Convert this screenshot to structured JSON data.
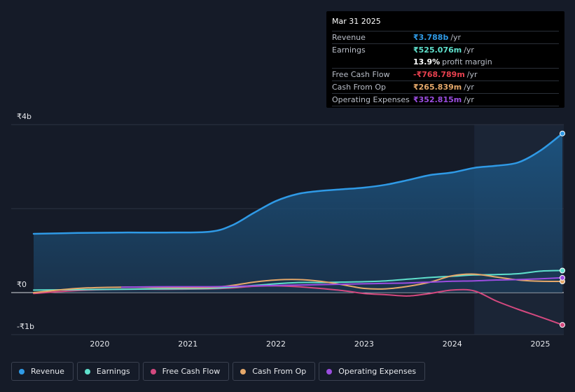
{
  "chart_data": {
    "type": "area",
    "x_unit": "year",
    "y_unit": "₹b",
    "ylim": [
      -1,
      4
    ],
    "xlim": [
      2019.25,
      2025.25
    ],
    "y_tick_labels": [
      {
        "value": 4,
        "label": "₹4b"
      },
      {
        "value": 0,
        "label": "₹0"
      },
      {
        "value": -1,
        "label": "-₹1b"
      }
    ],
    "x_tick_labels": [
      "2020",
      "2021",
      "2022",
      "2023",
      "2024",
      "2025"
    ],
    "x_tick_values": [
      2020,
      2021,
      2022,
      2023,
      2024,
      2025
    ],
    "grid": true,
    "highlight_start": 2024.25,
    "series": [
      {
        "name": "Revenue",
        "color": "#2f9ae6",
        "fill": true,
        "x": [
          2019.25,
          2019.75,
          2020.25,
          2020.75,
          2021.25,
          2021.5,
          2021.75,
          2022.0,
          2022.25,
          2022.5,
          2022.75,
          2023.0,
          2023.25,
          2023.5,
          2023.75,
          2024.0,
          2024.25,
          2024.5,
          2024.75,
          2025.0,
          2025.25
        ],
        "y": [
          1.4,
          1.42,
          1.43,
          1.43,
          1.45,
          1.6,
          1.9,
          2.18,
          2.35,
          2.42,
          2.46,
          2.5,
          2.57,
          2.68,
          2.8,
          2.86,
          2.97,
          3.02,
          3.1,
          3.38,
          3.788
        ]
      },
      {
        "name": "Earnings",
        "color": "#5fe0cc",
        "fill": false,
        "x": [
          2019.25,
          2019.75,
          2020.25,
          2020.75,
          2021.25,
          2021.5,
          2021.75,
          2022.0,
          2022.25,
          2022.5,
          2022.75,
          2023.0,
          2023.25,
          2023.5,
          2023.75,
          2024.0,
          2024.25,
          2024.5,
          2024.75,
          2025.0,
          2025.25
        ],
        "y": [
          0.06,
          0.07,
          0.08,
          0.09,
          0.1,
          0.13,
          0.17,
          0.21,
          0.24,
          0.24,
          0.25,
          0.26,
          0.28,
          0.32,
          0.36,
          0.39,
          0.42,
          0.43,
          0.45,
          0.51,
          0.525
        ]
      },
      {
        "name": "Free Cash Flow",
        "color": "#d4497f",
        "fill": false,
        "x": [
          2019.25,
          2019.75,
          2020.25,
          2020.75,
          2021.25,
          2021.5,
          2021.75,
          2022.0,
          2022.25,
          2022.5,
          2022.75,
          2023.0,
          2023.25,
          2023.5,
          2023.75,
          2024.0,
          2024.25,
          2024.5,
          2024.75,
          2025.0,
          2025.25
        ],
        "y": [
          -0.02,
          0.05,
          0.08,
          0.08,
          0.09,
          0.11,
          0.15,
          0.16,
          0.14,
          0.1,
          0.05,
          -0.02,
          -0.05,
          -0.08,
          -0.02,
          0.06,
          0.04,
          -0.2,
          -0.4,
          -0.58,
          -0.769
        ]
      },
      {
        "name": "Cash From Op",
        "color": "#e5a86a",
        "fill": false,
        "x": [
          2019.25,
          2019.75,
          2020.25,
          2020.75,
          2021.25,
          2021.5,
          2021.75,
          2022.0,
          2022.25,
          2022.5,
          2022.75,
          2023.0,
          2023.25,
          2023.5,
          2023.75,
          2024.0,
          2024.25,
          2024.5,
          2024.75,
          2025.0,
          2025.25
        ],
        "y": [
          0.0,
          0.1,
          0.13,
          0.12,
          0.12,
          0.17,
          0.25,
          0.3,
          0.31,
          0.27,
          0.19,
          0.1,
          0.09,
          0.15,
          0.25,
          0.4,
          0.44,
          0.37,
          0.3,
          0.27,
          0.266
        ]
      },
      {
        "name": "Operating Expenses",
        "color": "#9b4de0",
        "fill": false,
        "x": [
          2020.25,
          2020.75,
          2021.25,
          2021.5,
          2021.75,
          2022.0,
          2022.25,
          2022.5,
          2022.75,
          2023.0,
          2023.25,
          2023.5,
          2023.75,
          2024.0,
          2024.25,
          2024.5,
          2024.75,
          2025.0,
          2025.25
        ],
        "y": [
          0.13,
          0.14,
          0.14,
          0.15,
          0.16,
          0.17,
          0.18,
          0.19,
          0.2,
          0.21,
          0.22,
          0.23,
          0.25,
          0.27,
          0.28,
          0.3,
          0.31,
          0.33,
          0.353
        ]
      }
    ]
  },
  "tooltip": {
    "date": "Mar 31 2025",
    "rows": [
      {
        "label": "Revenue",
        "value": "₹3.788b",
        "unit": "/yr",
        "color": "#2f9ae6"
      },
      {
        "label": "Earnings",
        "value": "₹525.076m",
        "unit": "/yr",
        "color": "#5fe0cc"
      },
      {
        "label": "",
        "value": "13.9%",
        "unit": "profit margin",
        "color": "#ffffff"
      },
      {
        "label": "Free Cash Flow",
        "value": "-₹768.789m",
        "unit": "/yr",
        "color": "#e8414f"
      },
      {
        "label": "Cash From Op",
        "value": "₹265.839m",
        "unit": "/yr",
        "color": "#e5a86a"
      },
      {
        "label": "Operating Expenses",
        "value": "₹352.815m",
        "unit": "/yr",
        "color": "#9b4de0"
      }
    ]
  },
  "legend": [
    {
      "label": "Revenue",
      "color": "#2f9ae6"
    },
    {
      "label": "Earnings",
      "color": "#5fe0cc"
    },
    {
      "label": "Free Cash Flow",
      "color": "#d4497f"
    },
    {
      "label": "Cash From Op",
      "color": "#e5a86a"
    },
    {
      "label": "Operating Expenses",
      "color": "#9b4de0"
    }
  ]
}
